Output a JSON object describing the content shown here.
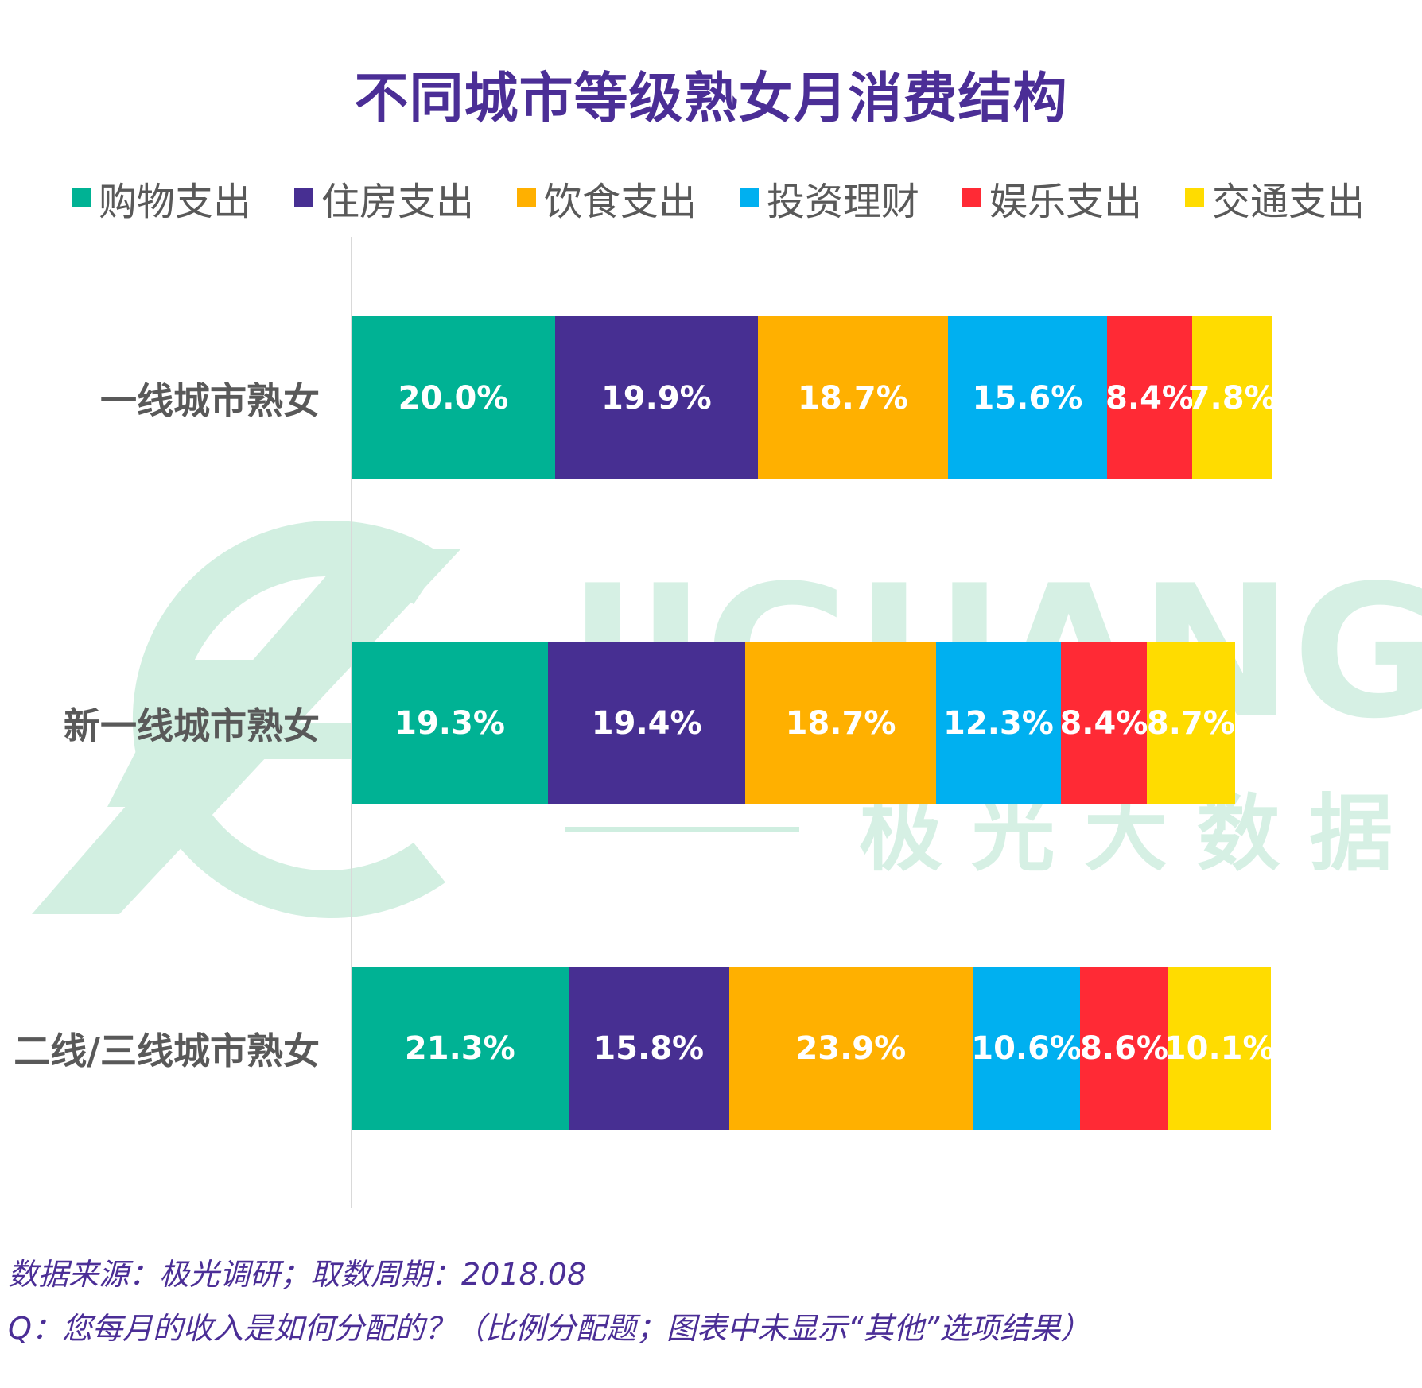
{
  "chart_data": {
    "type": "bar",
    "orientation": "horizontal",
    "stacked": true,
    "title": "不同城市等级熟女月消费结构",
    "categories": [
      "一线城市熟女",
      "新一线城市熟女",
      "二线/三线城市熟女"
    ],
    "series": [
      {
        "name": "购物支出",
        "color": "#00b294",
        "values": [
          20.0,
          19.3,
          21.3
        ],
        "labels": [
          "20.0%",
          "19.3%",
          "21.3%"
        ]
      },
      {
        "name": "住房支出",
        "color": "#472f92",
        "values": [
          19.9,
          19.4,
          15.8
        ],
        "labels": [
          "19.9%",
          "19.4%",
          "15.8%"
        ]
      },
      {
        "name": "饮食支出",
        "color": "#ffb000",
        "values": [
          18.7,
          18.7,
          23.9
        ],
        "labels": [
          "18.7%",
          "18.7%",
          "23.9%"
        ]
      },
      {
        "name": "投资理财",
        "color": "#00b0f0",
        "values": [
          15.6,
          12.3,
          10.6
        ],
        "labels": [
          "15.6%",
          "12.3%",
          "10.6%"
        ]
      },
      {
        "name": "娱乐支出",
        "color": "#ff2a35",
        "values": [
          8.4,
          8.4,
          8.6
        ],
        "labels": [
          "8.4%",
          "8.4%",
          "8.6%"
        ]
      },
      {
        "name": "交通支出",
        "color": "#ffdc00",
        "values": [
          7.8,
          8.7,
          10.1
        ],
        "labels": [
          "7.8%",
          "8.7%",
          "10.1%"
        ]
      }
    ],
    "xlim": [
      0,
      100
    ],
    "legend_position": "top",
    "grid": false
  },
  "watermark": {
    "latin": "JIGUANG",
    "chinese": "极 光 大 数 据",
    "color": "#cfeee0"
  },
  "footnotes": {
    "source": "数据来源：极光调研；取数周期：2018.08",
    "question": "Q：您每月的收入是如何分配的？（比例分配题；图表中未显示“其他”选项结果）"
  }
}
